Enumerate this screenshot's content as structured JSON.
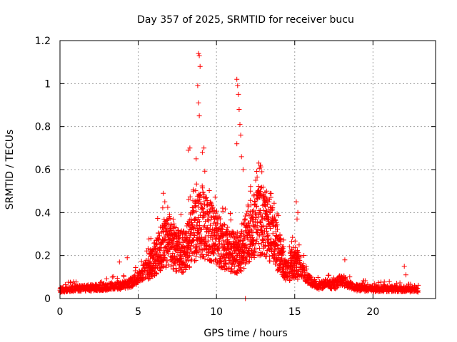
{
  "chart_data": {
    "type": "scatter",
    "title": "Day 357 of 2025, SRMTID for receiver bucu",
    "xlabel": "GPS time / hours",
    "ylabel": "SRMTID / TECUs",
    "xlim": [
      0,
      24
    ],
    "ylim": [
      0,
      1.2
    ],
    "xticks": [
      0,
      5,
      10,
      15,
      20
    ],
    "xtick_labels": [
      "0",
      "5",
      "10",
      "15",
      "20"
    ],
    "yticks": [
      0,
      0.2,
      0.4,
      0.6,
      0.8,
      1,
      1.2
    ],
    "ytick_labels": [
      "0",
      "0.2",
      "0.4",
      "0.6",
      "0.8",
      "1",
      "1.2"
    ],
    "grid": true,
    "marker": "plus",
    "color": "#ff0000",
    "series": [
      {
        "name": "SRMTID",
        "envelope": {
          "description": "typical level (hours, TECU) used to draw the dense point cloud",
          "x": [
            0,
            1,
            2,
            3,
            4,
            4.5,
            5,
            5.5,
            6,
            6.5,
            7,
            7.5,
            8,
            8.5,
            9,
            9.5,
            10,
            10.5,
            11,
            11.5,
            12,
            12.5,
            13,
            13.5,
            14,
            14.5,
            15,
            15.5,
            16,
            16.5,
            17,
            17.5,
            18,
            18.5,
            19,
            20,
            21,
            22,
            22.9
          ],
          "y": [
            0.04,
            0.045,
            0.05,
            0.055,
            0.06,
            0.07,
            0.1,
            0.14,
            0.18,
            0.24,
            0.27,
            0.22,
            0.22,
            0.3,
            0.35,
            0.32,
            0.28,
            0.24,
            0.22,
            0.2,
            0.3,
            0.35,
            0.36,
            0.3,
            0.22,
            0.14,
            0.17,
            0.13,
            0.08,
            0.06,
            0.07,
            0.06,
            0.09,
            0.06,
            0.05,
            0.045,
            0.045,
            0.045,
            0.04
          ]
        },
        "notable_points": {
          "x": [
            8.85,
            8.9,
            8.95,
            8.8,
            8.85,
            8.9,
            8.2,
            8.3,
            8.7,
            9.2,
            9.1,
            11.3,
            11.35,
            11.4,
            11.45,
            11.5,
            11.6,
            11.55,
            11.3,
            11.7,
            12.8,
            12.9,
            13.2,
            15.1,
            15.2,
            15.15,
            11.85,
            4.3,
            3.8,
            6.6,
            6.7,
            18.2,
            22.0,
            22.1
          ],
          "y": [
            1.14,
            1.13,
            1.08,
            0.99,
            0.91,
            0.85,
            0.69,
            0.7,
            0.65,
            0.7,
            0.68,
            1.02,
            0.99,
            0.95,
            0.88,
            0.81,
            0.66,
            0.76,
            0.72,
            0.6,
            0.62,
            0.59,
            0.5,
            0.45,
            0.4,
            0.37,
            0.0,
            0.19,
            0.17,
            0.49,
            0.45,
            0.18,
            0.15,
            0.11
          ]
        }
      }
    ]
  }
}
